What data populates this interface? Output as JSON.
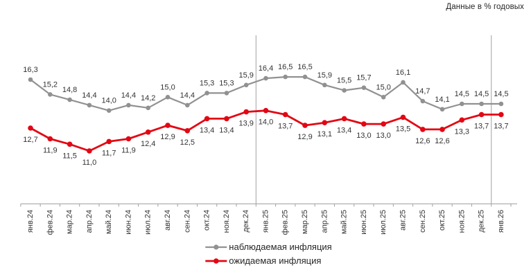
{
  "note": "Данные в % годовых",
  "chart_data": {
    "type": "line",
    "x": [
      "янв.24",
      "фев.24",
      "мар.24",
      "апр.24",
      "май.24",
      "июн.24",
      "июл.24",
      "авг.24",
      "сен.24",
      "окт.24",
      "ноя.24",
      "дек.24",
      "янв.25",
      "фев.25",
      "мар.25",
      "апр.25",
      "май.25",
      "июн.25",
      "июл.25",
      "авг.25",
      "сен.25",
      "окт.25",
      "ноя.25",
      "дек.25",
      "янв.26"
    ],
    "series": [
      {
        "id": "observed",
        "name": "наблюдаемая инфляция",
        "color": "#919191",
        "values": [
          16.3,
          15.2,
          14.8,
          14.4,
          14.0,
          14.4,
          14.2,
          15.0,
          14.4,
          15.3,
          15.3,
          15.9,
          16.4,
          16.5,
          16.5,
          15.9,
          15.5,
          15.7,
          15.0,
          16.1,
          14.7,
          14.1,
          14.5,
          14.5,
          14.5
        ]
      },
      {
        "id": "expected",
        "name": "ожидаемая инфляция",
        "color": "#e30613",
        "values": [
          12.7,
          11.9,
          11.5,
          11.0,
          11.7,
          11.9,
          12.4,
          12.9,
          12.5,
          13.4,
          13.4,
          13.9,
          14.0,
          13.7,
          12.9,
          13.1,
          13.4,
          13.0,
          13.0,
          13.5,
          12.6,
          12.6,
          13.3,
          13.7,
          13.7
        ]
      }
    ],
    "ylim": [
      10.5,
      17.0
    ],
    "grid": false,
    "year_separator_after": [
      "дек.24",
      "дек.25"
    ],
    "legend_position": "bottom",
    "decimal_separator": ","
  }
}
